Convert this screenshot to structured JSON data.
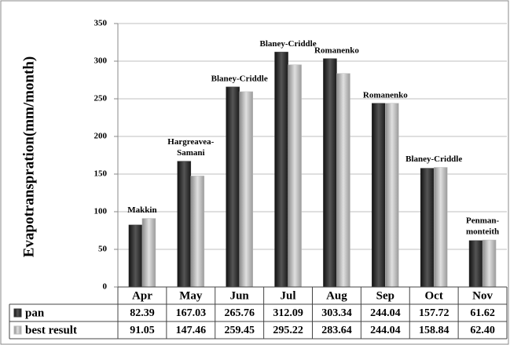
{
  "chart_data": {
    "type": "bar",
    "y_label": "Evapotranspration(mm/month)",
    "categories": [
      "Apr",
      "May",
      "Jun",
      "Jul",
      "Aug",
      "Sep",
      "Oct",
      "Nov"
    ],
    "series": [
      {
        "name": "pan",
        "color": "#333333",
        "values": [
          82.39,
          167.03,
          265.76,
          312.09,
          303.34,
          244.04,
          157.72,
          61.62
        ]
      },
      {
        "name": "best result",
        "color": "#b8b8b8",
        "values": [
          91.05,
          147.46,
          259.45,
          295.22,
          283.64,
          244.04,
          158.84,
          62.4
        ],
        "value_labels": [
          "91.05",
          "147.46",
          "259.45",
          "295.22",
          "283.64",
          "244.04",
          "158.84",
          "62.40"
        ]
      }
    ],
    "annotations": [
      [
        "Makkin"
      ],
      [
        "Hargreavea-",
        "Samani"
      ],
      [
        "Blaney-Criddle"
      ],
      [
        "Blaney-Criddle"
      ],
      [
        "Romanenko"
      ],
      [
        "Romanenko"
      ],
      [
        "Blaney-Criddle"
      ],
      [
        "Penman-",
        "monteith"
      ]
    ],
    "ylim": [
      0,
      350
    ],
    "yticks": [
      0,
      50,
      100,
      150,
      200,
      250,
      300,
      350
    ],
    "grid": true
  }
}
